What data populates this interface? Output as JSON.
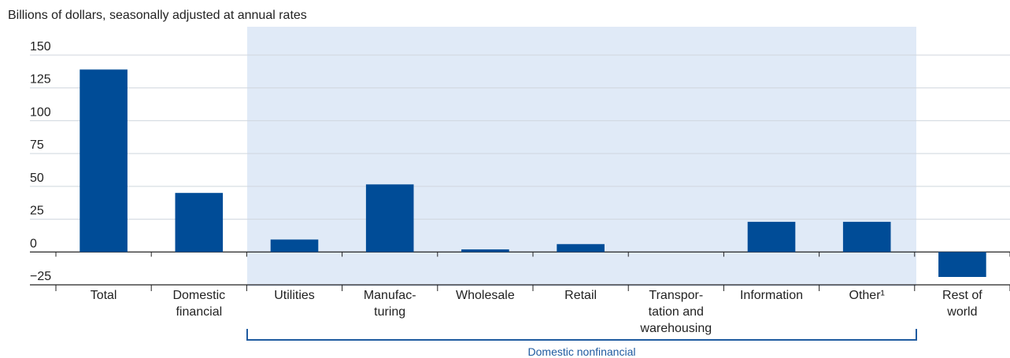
{
  "chart_data": {
    "type": "bar",
    "subtitle": "Billions of dollars, seasonally adjusted at annual rates",
    "categories": [
      "Total",
      "Domestic\nfinancial",
      "Utilities",
      "Manufac-\nturing",
      "Wholesale",
      "Retail",
      "Transpor-\ntation and\nwarehousing",
      "Information",
      "Other¹",
      "Rest of\nworld"
    ],
    "values": [
      139,
      45,
      9.5,
      51.5,
      2,
      6,
      0,
      23,
      23,
      -19
    ],
    "color": "#004c97",
    "group_label": "Domestic nonfinancial",
    "ylim": [
      -25,
      150
    ],
    "yticks": [
      {
        "value": -25,
        "label": "−25"
      },
      0,
      25,
      50,
      75,
      100,
      125,
      150
    ],
    "grid": true
  }
}
